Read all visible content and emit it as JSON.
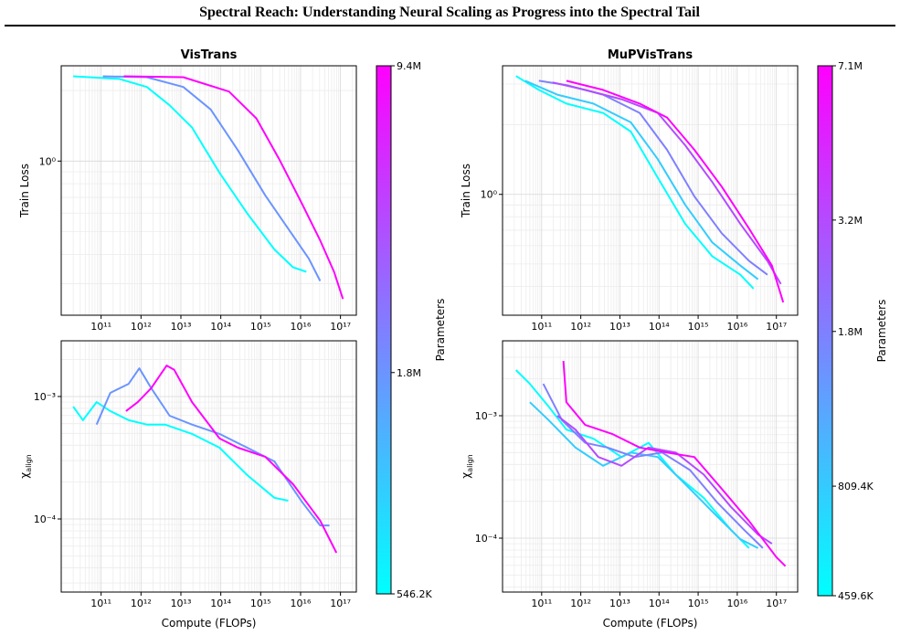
{
  "title": "Spectral Reach: Understanding Neural Scaling as Progress into the Spectral Tail",
  "chart_data": [
    {
      "type": "line",
      "title": "VisTrans",
      "ylabel": "Train Loss",
      "xlog": true,
      "ylog": true,
      "grid": true,
      "minor_grid": true,
      "xlim": [
        10000000000.0,
        2.5e+17
      ],
      "ylim": [
        0.22,
        2.55
      ],
      "xticks": [
        {
          "value": 100000000000.0,
          "label": "10¹¹"
        },
        {
          "value": 1000000000000.0,
          "label": "10¹²"
        },
        {
          "value": 10000000000000.0,
          "label": "10¹³"
        },
        {
          "value": 100000000000000.0,
          "label": "10¹⁴"
        },
        {
          "value": 1000000000000000.0,
          "label": "10¹⁵"
        },
        {
          "value": 1e+16,
          "label": "10¹⁶"
        },
        {
          "value": 1e+17,
          "label": "10¹⁷"
        }
      ],
      "yticks": [
        {
          "value": 1,
          "label": "10⁰"
        }
      ],
      "series": [
        {
          "color": "#00ffff",
          "x": [
            20000000000.0,
            290000000000.0,
            1400000000000.0,
            5200000000000.0,
            19000000000000.0,
            93000000000000.0,
            460000000000000.0,
            2200000000000000.0,
            6500000000000000.0,
            1.4e+16
          ],
          "values": [
            2.3,
            2.24,
            2.07,
            1.73,
            1.39,
            0.891,
            0.598,
            0.42,
            0.352,
            0.337
          ]
        },
        {
          "color": "#6b94ff",
          "x": [
            110000000000.0,
            1400000000000.0,
            11500000000000.0,
            56000000000000.0,
            270000000000000.0,
            1300000000000000.0,
            6500000000000000.0,
            1.6e+16,
            3.1e+16
          ],
          "values": [
            2.3,
            2.28,
            2.07,
            1.66,
            1.11,
            0.714,
            0.48,
            0.384,
            0.308
          ]
        },
        {
          "color": "#ff00ff",
          "x": [
            370000000000.0,
            11500000000000.0,
            160000000000000.0,
            780000000000000.0,
            2900000000000000.0,
            1.1e+16,
            3.1e+16,
            6.9e+16,
            1.15e+17
          ],
          "values": [
            2.3,
            2.28,
            1.98,
            1.52,
            1.02,
            0.654,
            0.459,
            0.337,
            0.258
          ]
        }
      ],
      "colorbar": {
        "label": "Parameters",
        "log": true,
        "lim": [
          546200,
          9400000
        ],
        "colors": [
          "#00ffff",
          "#ff00ff"
        ],
        "ticks": [
          {
            "value": 546200,
            "label": "546.2K"
          },
          {
            "value": 1800000,
            "label": "1.8M"
          },
          {
            "value": 9400000,
            "label": "9.4M"
          }
        ]
      }
    },
    {
      "type": "line",
      "ylabel": {
        "symbol": "χ",
        "subscript": "align"
      },
      "xlabel": "Compute (FLOPs)",
      "xlog": true,
      "ylog": true,
      "grid": true,
      "minor_grid": true,
      "xlim": [
        10000000000.0,
        2.5e+17
      ],
      "ylim": [
        2.53e-05,
        0.00285
      ],
      "xticks": [
        {
          "value": 100000000000.0,
          "label": "10¹¹"
        },
        {
          "value": 1000000000000.0,
          "label": "10¹²"
        },
        {
          "value": 10000000000000.0,
          "label": "10¹³"
        },
        {
          "value": 100000000000000.0,
          "label": "10¹⁴"
        },
        {
          "value": 1000000000000000.0,
          "label": "10¹⁵"
        },
        {
          "value": 1e+16,
          "label": "10¹⁶"
        },
        {
          "value": 1e+17,
          "label": "10¹⁷"
        }
      ],
      "yticks": [
        {
          "value": 0.0001,
          "label": "10⁻⁴"
        },
        {
          "value": 0.001,
          "label": "10⁻³"
        }
      ],
      "series": [
        {
          "color": "#00ffff",
          "x": [
            20000000000.0,
            35000000000.0,
            77000000000.0,
            170000000000.0,
            490000000000.0,
            1400000000000.0,
            4000000000000.0,
            19000000000000.0,
            93000000000000.0,
            460000000000000.0,
            2200000000000000.0,
            4900000000000000.0
          ],
          "values": [
            0.000828,
            0.00064,
            0.0009,
            0.00076,
            0.00064,
            0.00059,
            0.00059,
            0.000495,
            0.000382,
            0.000228,
            0.000149,
            0.000141
          ]
        },
        {
          "color": "#6b94ff",
          "x": [
            77000000000.0,
            170000000000.0,
            490000000000.0,
            910000000000.0,
            1800000000000.0,
            5200000000000.0,
            19000000000000.0,
            93000000000000.0,
            460000000000000.0,
            2200000000000000.0,
            1.1e+16,
            3.1e+16,
            5.3e+16
          ],
          "values": [
            0.00059,
            0.00107,
            0.00127,
            0.0017,
            0.00117,
            0.000697,
            0.00059,
            0.000495,
            0.000382,
            0.000295,
            0.000137,
            8.85e-05,
            8.85e-05
          ]
        },
        {
          "color": "#ff00ff",
          "x": [
            420000000000.0,
            830000000000.0,
            1800000000000.0,
            4400000000000.0,
            6800000000000.0,
            19000000000000.0,
            93000000000000.0,
            270000000000000.0,
            1300000000000000.0,
            6500000000000000.0,
            3.1e+16,
            7.9e+16
          ],
          "values": [
            0.00076,
            0.0009,
            0.00117,
            0.00179,
            0.00165,
            0.0009,
            0.000454,
            0.000382,
            0.000322,
            0.000192,
            9.7e-05,
            5.3e-05
          ]
        }
      ]
    },
    {
      "type": "line",
      "title": "MuPVisTrans",
      "ylabel": "Train Loss",
      "xlog": true,
      "ylog": true,
      "grid": true,
      "minor_grid": true,
      "xlim": [
        10000000000.0,
        3.5e+17
      ],
      "ylim": [
        0.3,
        3.6
      ],
      "xticks": [
        {
          "value": 100000000000.0,
          "label": "10¹¹"
        },
        {
          "value": 1000000000000.0,
          "label": "10¹²"
        },
        {
          "value": 10000000000000.0,
          "label": "10¹³"
        },
        {
          "value": 100000000000000.0,
          "label": "10¹⁴"
        },
        {
          "value": 1000000000000000.0,
          "label": "10¹⁵"
        },
        {
          "value": 1e+16,
          "label": "10¹⁶"
        },
        {
          "value": 1e+17,
          "label": "10¹⁷"
        }
      ],
      "yticks": [
        {
          "value": 1,
          "label": "10⁰"
        }
      ],
      "series": [
        {
          "color": "#00ffff",
          "x": [
            22000000000.0,
            85000000000.0,
            430000000000.0,
            3700000000000.0,
            19000000000000.0,
            93000000000000.0,
            470000000000000.0,
            2300000000000000.0,
            1.2e+16,
            2.6e+16
          ],
          "values": [
            3.25,
            2.83,
            2.47,
            2.25,
            1.87,
            1.18,
            0.745,
            0.539,
            0.449,
            0.391
          ]
        },
        {
          "color": "#33ccff",
          "x": [
            38000000000.0,
            250000000000.0,
            2100000000000.0,
            19000000000000.0,
            93000000000000.0,
            470000000000000.0,
            2300000000000000.0,
            1.2e+16,
            3.4e+16
          ],
          "values": [
            3.1,
            2.7,
            2.47,
            2.05,
            1.42,
            0.9,
            0.619,
            0.492,
            0.429
          ]
        },
        {
          "color": "#7f80ff",
          "x": [
            85000000000.0,
            430000000000.0,
            3700000000000.0,
            32000000000000.0,
            160000000000000.0,
            800000000000000.0,
            4000000000000000.0,
            2e+16,
            5.9e+16
          ],
          "values": [
            3.1,
            2.97,
            2.7,
            2.25,
            1.56,
            0.98,
            0.679,
            0.515,
            0.449
          ]
        },
        {
          "color": "#b34cff",
          "x": [
            190000000000.0,
            1300000000000.0,
            11000000000000.0,
            93000000000000.0,
            470000000000000.0,
            2300000000000000.0,
            1.2e+16,
            5.9e+16,
            1.3e+17
          ],
          "values": [
            3.05,
            2.83,
            2.58,
            2.25,
            1.63,
            1.13,
            0.745,
            0.515,
            0.409
          ]
        },
        {
          "color": "#ff00ff",
          "x": [
            430000000000.0,
            3700000000000.0,
            32000000000000.0,
            160000000000000.0,
            800000000000000.0,
            4000000000000000.0,
            2e+16,
            7.7e+16,
            1.5e+17
          ],
          "values": [
            3.1,
            2.83,
            2.47,
            2.15,
            1.56,
            1.08,
            0.711,
            0.492,
            0.341
          ]
        }
      ],
      "colorbar": {
        "label": "Parameters",
        "log": true,
        "lim": [
          459600,
          7100000
        ],
        "colors": [
          "#00ffff",
          "#ff00ff"
        ],
        "ticks": [
          {
            "value": 459600,
            "label": "459.6K"
          },
          {
            "value": 809400,
            "label": "809.4K"
          },
          {
            "value": 1800000,
            "label": "1.8M"
          },
          {
            "value": 3200000,
            "label": "3.2M"
          },
          {
            "value": 7100000,
            "label": "7.1M"
          }
        ]
      }
    },
    {
      "type": "line",
      "ylabel": {
        "symbol": "χ",
        "subscript": "align"
      },
      "xlabel": "Compute (FLOPs)",
      "xlog": true,
      "ylog": true,
      "grid": true,
      "minor_grid": true,
      "xlim": [
        10000000000.0,
        3.5e+17
      ],
      "ylim": [
        3.63e-05,
        0.00409
      ],
      "xticks": [
        {
          "value": 100000000000.0,
          "label": "10¹¹"
        },
        {
          "value": 1000000000000.0,
          "label": "10¹²"
        },
        {
          "value": 10000000000000.0,
          "label": "10¹³"
        },
        {
          "value": 100000000000000.0,
          "label": "10¹⁴"
        },
        {
          "value": 1000000000000000.0,
          "label": "10¹⁵"
        },
        {
          "value": 1e+16,
          "label": "10¹⁶"
        },
        {
          "value": 1e+17,
          "label": "10¹⁷"
        }
      ],
      "yticks": [
        {
          "value": 0.0001,
          "label": "10⁻⁴"
        },
        {
          "value": 0.001,
          "label": "10⁻³"
        }
      ],
      "series": [
        {
          "color": "#00ffff",
          "x": [
            22000000000.0,
            50000000000.0,
            150000000000.0,
            430000000000.0,
            2100000000000.0,
            11000000000000.0,
            54000000000000.0,
            270000000000000.0,
            1400000000000000.0,
            6900000000000000.0,
            2e+16
          ],
          "values": [
            0.00236,
            0.00182,
            0.00119,
            0.00077,
            0.00065,
            0.00046,
            0.0006,
            0.00033,
            0.000213,
            0.000117,
            8.3e-05
          ]
        },
        {
          "color": "#33ccff",
          "x": [
            50000000000.0,
            150000000000.0,
            730000000000.0,
            3700000000000.0,
            19000000000000.0,
            93000000000000.0,
            470000000000000.0,
            2300000000000000.0,
            1.2e+16,
            3.4e+16
          ],
          "values": [
            0.00129,
            0.00092,
            0.00055,
            0.00039,
            0.0005,
            0.00046,
            0.000276,
            0.000165,
            9.8e-05,
            8.3e-05
          ]
        },
        {
          "color": "#7f80ff",
          "x": [
            110000000000.0,
            330000000000.0,
            1300000000000.0,
            4800000000000.0,
            24000000000000.0,
            120000000000000.0,
            620000000000000.0,
            3100000000000000.0,
            1.5e+16,
            4.5e+16
          ],
          "values": [
            0.00182,
            0.00092,
            0.0006,
            0.00055,
            0.00046,
            0.0005,
            0.00036,
            0.000195,
            0.000117,
            8.3e-05
          ]
        },
        {
          "color": "#b34cff",
          "x": [
            250000000000.0,
            730000000000.0,
            2800000000000.0,
            11000000000000.0,
            54000000000000.0,
            270000000000000.0,
            1400000000000000.0,
            6900000000000000.0,
            3.4e+16,
            7.7e+16
          ],
          "values": [
            0.001,
            0.00077,
            0.00046,
            0.00039,
            0.00055,
            0.0005,
            0.00033,
            0.00018,
            0.000107,
            9e-05
          ]
        },
        {
          "color": "#ff00ff",
          "x": [
            360000000000.0,
            430000000000.0,
            1300000000000.0,
            6300000000000.0,
            32000000000000.0,
            160000000000000.0,
            800000000000000.0,
            4000000000000000.0,
            2e+16,
            1e+17,
            1.7e+17
          ],
          "values": [
            0.0028,
            0.00129,
            0.00084,
            0.00071,
            0.00055,
            0.0005,
            0.00046,
            0.000253,
            0.000138,
            7e-05,
            5.9e-05
          ]
        }
      ]
    }
  ]
}
